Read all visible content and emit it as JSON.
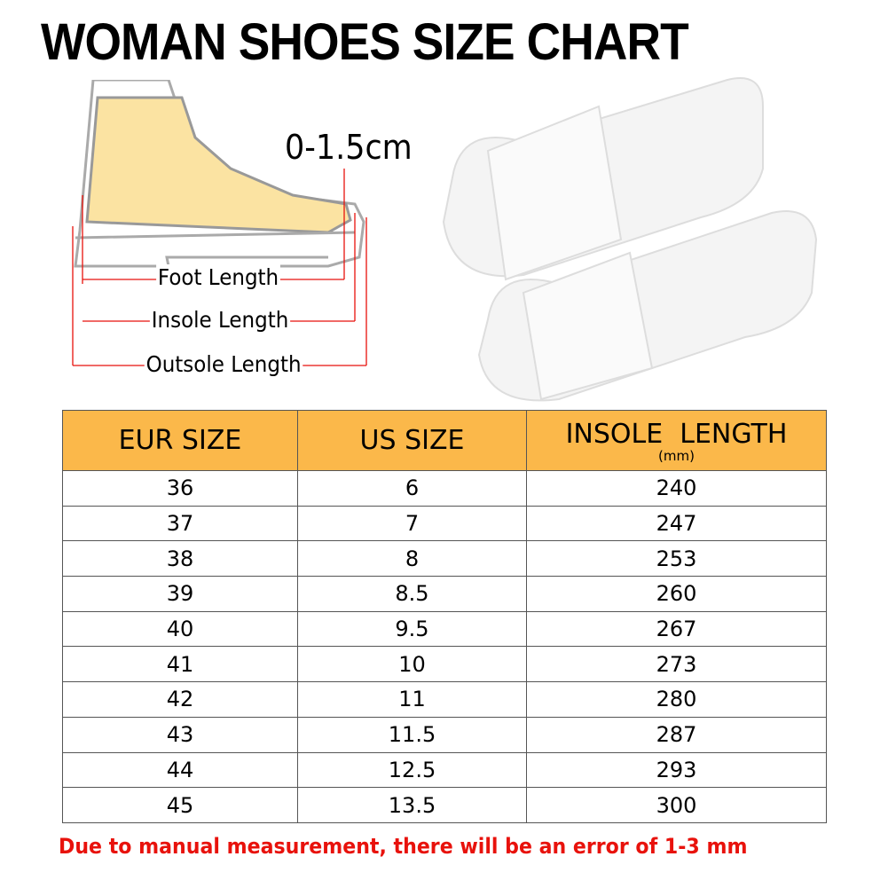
{
  "title": "WOMAN SHOES SIZE CHART",
  "diagram": {
    "gap_label": "0-1.5cm",
    "foot_length": "Foot Length",
    "insole_length": "Insole Length",
    "outsole_length": "Outsole Length",
    "arrow_color": "#e8120c",
    "foot_color": "#fbe3a2"
  },
  "table": {
    "header_color": "#fbb84a",
    "headers": [
      "EUR SIZE",
      "US SIZE",
      "INSOLE  LENGTH"
    ],
    "unit": "(mm)",
    "rows": [
      [
        "36",
        "6",
        "240"
      ],
      [
        "37",
        "7",
        "247"
      ],
      [
        "38",
        "8",
        "253"
      ],
      [
        "39",
        "8.5",
        "260"
      ],
      [
        "40",
        "9.5",
        "267"
      ],
      [
        "41",
        "10",
        "273"
      ],
      [
        "42",
        "11",
        "280"
      ],
      [
        "43",
        "11.5",
        "287"
      ],
      [
        "44",
        "12.5",
        "293"
      ],
      [
        "45",
        "13.5",
        "300"
      ]
    ]
  },
  "note": "Due to manual measurement, there will be an error of 1-3  mm"
}
